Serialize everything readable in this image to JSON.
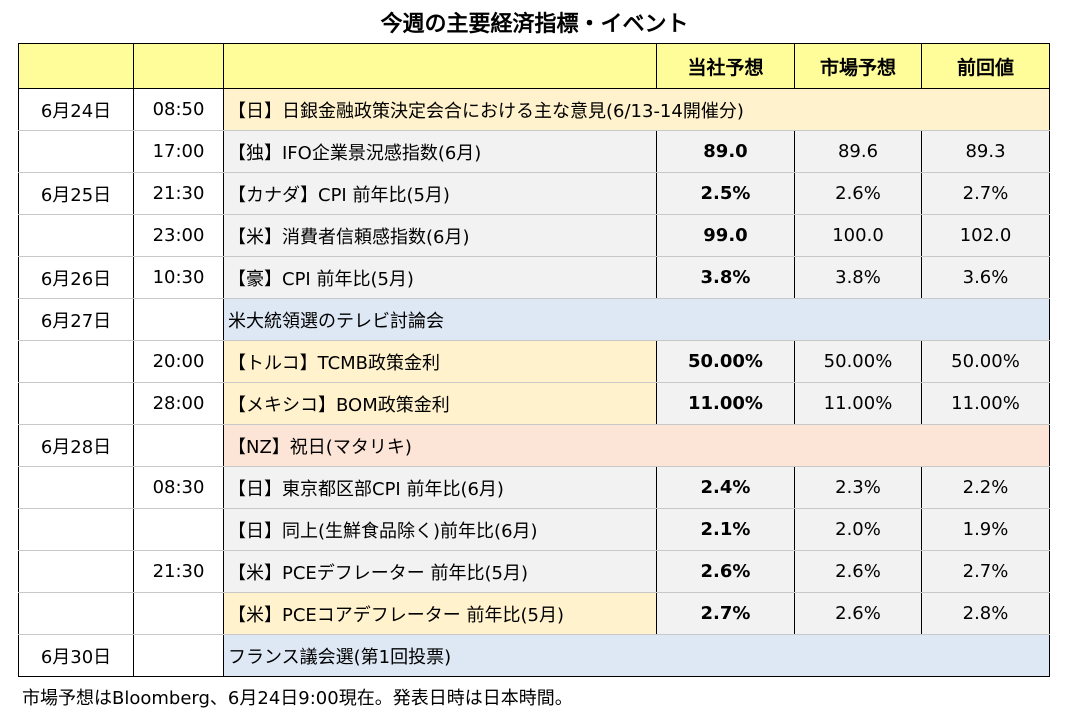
{
  "title": "今週の主要経済指標・イベント",
  "headers": {
    "own_forecast": "当社予想",
    "consensus": "市場予想",
    "previous": "前回値"
  },
  "rows": [
    {
      "date": "6月24日",
      "time": "08:50",
      "event": "【日】日銀金融政策決定会合における主な意見(6/13-14開催分)",
      "own": "",
      "cons": "",
      "prev": ""
    },
    {
      "date": "",
      "time": "17:00",
      "event": "【独】IFO企業景況感指数(6月)",
      "own": "89.0",
      "cons": "89.6",
      "prev": "89.3"
    },
    {
      "date": "6月25日",
      "time": "21:30",
      "event": "【カナダ】CPI 前年比(5月)",
      "own": "2.5%",
      "cons": "2.6%",
      "prev": "2.7%"
    },
    {
      "date": "",
      "time": "23:00",
      "event": "【米】消費者信頼感指数(6月)",
      "own": "99.0",
      "cons": "100.0",
      "prev": "102.0"
    },
    {
      "date": "6月26日",
      "time": "10:30",
      "event": "【豪】CPI 前年比(5月)",
      "own": "3.8%",
      "cons": "3.8%",
      "prev": "3.6%"
    },
    {
      "date": "6月27日",
      "time": "",
      "event": "米大統領選のテレビ討論会",
      "own": "",
      "cons": "",
      "prev": ""
    },
    {
      "date": "",
      "time": "20:00",
      "event": "【トルコ】TCMB政策金利",
      "own": "50.00%",
      "cons": "50.00%",
      "prev": "50.00%"
    },
    {
      "date": "",
      "time": "28:00",
      "event": "【メキシコ】BOM政策金利",
      "own": "11.00%",
      "cons": "11.00%",
      "prev": "11.00%"
    },
    {
      "date": "6月28日",
      "time": "",
      "event": "【NZ】祝日(マタリキ)",
      "own": "",
      "cons": "",
      "prev": ""
    },
    {
      "date": "",
      "time": "08:30",
      "event": "【日】東京都区部CPI 前年比(6月)",
      "own": "2.4%",
      "cons": "2.3%",
      "prev": "2.2%"
    },
    {
      "date": "",
      "time": "",
      "event": "【日】同上(生鮮食品除く)前年比(6月)",
      "own": "2.1%",
      "cons": "2.0%",
      "prev": "1.9%"
    },
    {
      "date": "",
      "time": "21:30",
      "event": "【米】PCEデフレーター 前年比(5月)",
      "own": "2.6%",
      "cons": "2.6%",
      "prev": "2.7%"
    },
    {
      "date": "",
      "time": "",
      "event": "【米】PCEコアデフレーター 前年比(5月)",
      "own": "2.7%",
      "cons": "2.6%",
      "prev": "2.8%"
    },
    {
      "date": "6月30日",
      "time": "",
      "event": "フランス議会選(第1回投票)",
      "own": "",
      "cons": "",
      "prev": ""
    }
  ],
  "footnote": "市場予想はBloomberg、6月24日9:00現在。発表日時は日本時間。",
  "colors": {
    "header_bg": "#fffd99",
    "event_yellow": "#fff2cc",
    "event_blue": "#dde8f4",
    "event_pink": "#fce4d6",
    "cell_gray": "#f2f2f2"
  }
}
